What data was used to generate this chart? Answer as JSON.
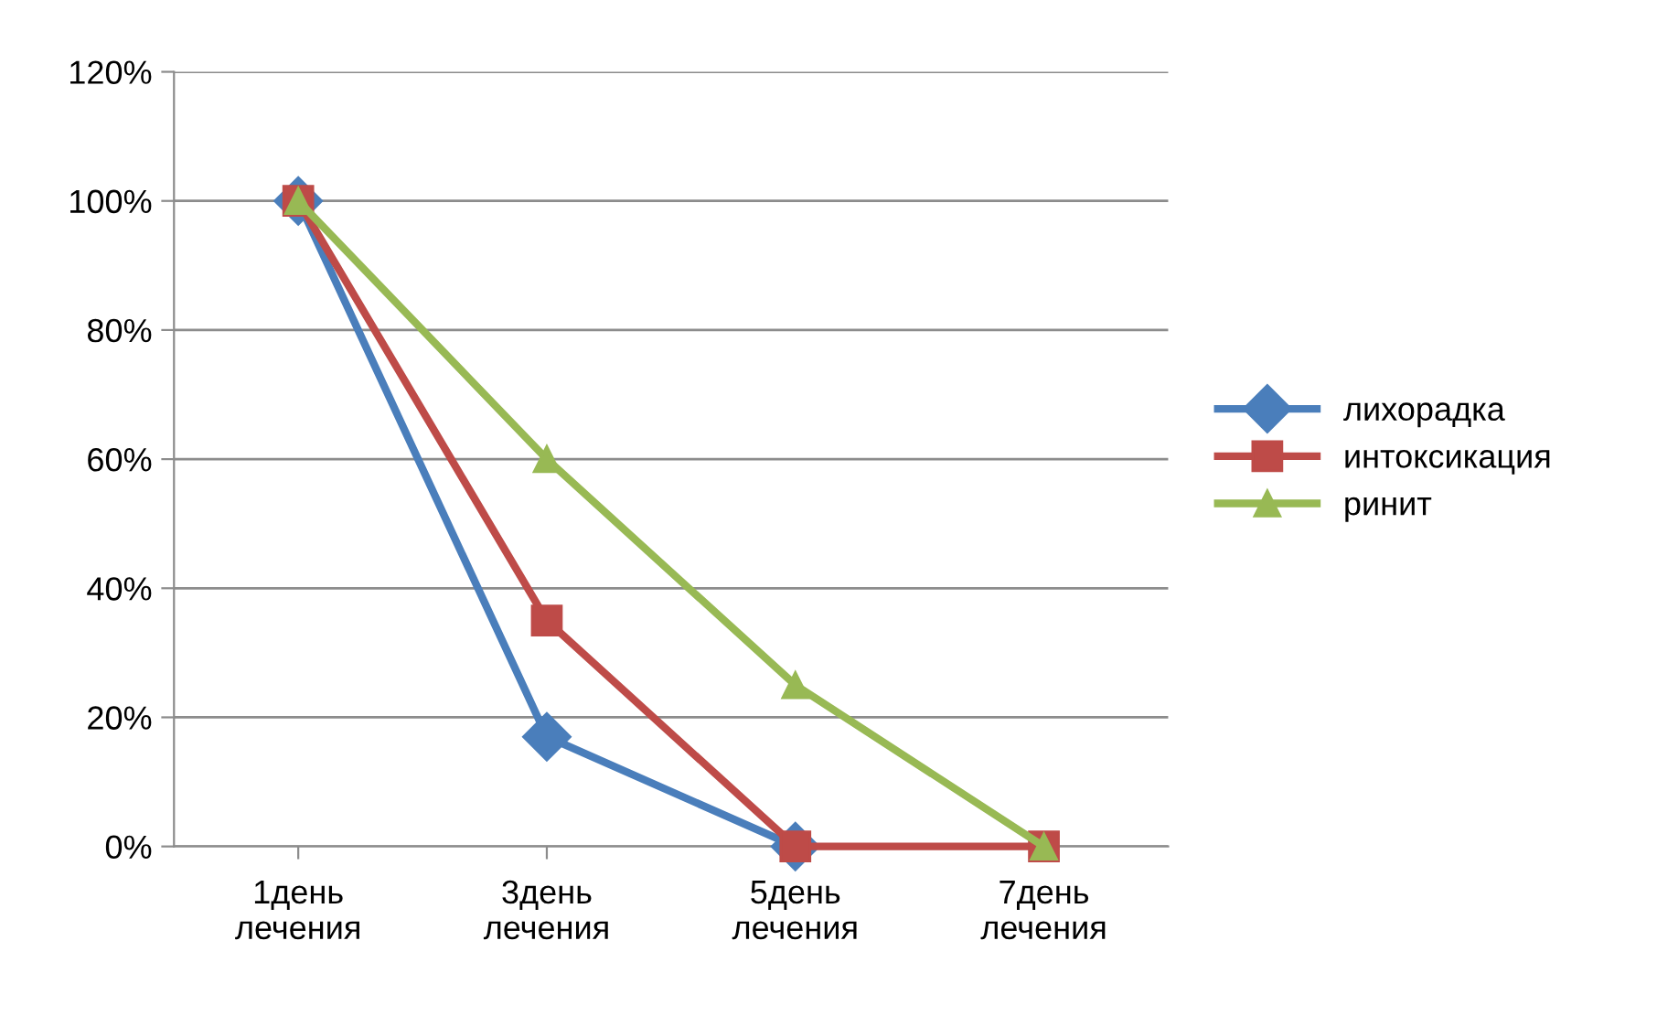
{
  "chart_data": {
    "type": "line",
    "categories": [
      "1день\nлечения",
      "3день\nлечения",
      "5день\nлечения",
      "7день\nлечения"
    ],
    "series": [
      {
        "name": "лихорадка",
        "color": "#4a7ebb",
        "marker": "diamond",
        "values": [
          100,
          17,
          0,
          null
        ]
      },
      {
        "name": "интоксикация",
        "color": "#be4b48",
        "marker": "square",
        "values": [
          100,
          35,
          0,
          0
        ]
      },
      {
        "name": "ринит",
        "color": "#98b954",
        "marker": "triangle",
        "values": [
          100,
          60,
          25,
          0
        ]
      }
    ],
    "ylim": [
      0,
      120
    ],
    "yticks": [
      {
        "value": 0,
        "label": "0%"
      },
      {
        "value": 20,
        "label": "20%"
      },
      {
        "value": 40,
        "label": "40%"
      },
      {
        "value": 60,
        "label": "60%"
      },
      {
        "value": 80,
        "label": "80%"
      },
      {
        "value": 100,
        "label": "100%"
      },
      {
        "value": 120,
        "label": "120%"
      }
    ],
    "grid": "y",
    "legend": "right",
    "line_style": "solid"
  }
}
